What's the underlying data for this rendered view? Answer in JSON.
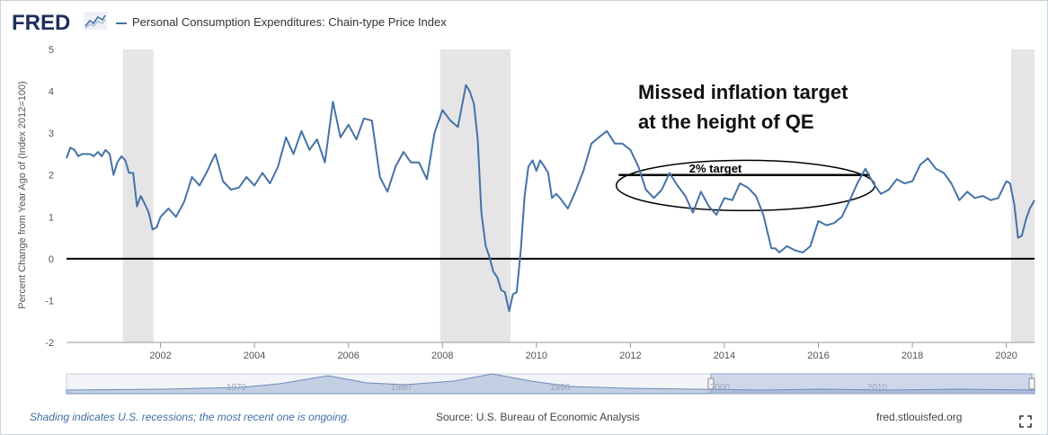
{
  "header": {
    "logo_text": "FRED",
    "logo_icon": "fred-chart-icon",
    "legend_label": "Personal Consumption Expenditures: Chain-type Price Index"
  },
  "footer": {
    "recession_note": "Shading indicates U.S. recessions; the most recent one is ongoing.",
    "source": "Source: U.S. Bureau of Economic Analysis",
    "site": "fred.stlouisfed.org"
  },
  "annotation": {
    "title_line1": "Missed inflation target",
    "title_line2": "at the height of QE",
    "target_label": "2% target"
  },
  "chart_data": {
    "type": "line",
    "title": "Personal Consumption Expenditures: Chain-type Price Index",
    "xlabel": "",
    "ylabel": "Percent Change from Year Ago of (Index 2012=100)",
    "xlim": [
      2000.0,
      2020.6
    ],
    "ylim": [
      -2,
      5
    ],
    "yticks": [
      -2,
      -1,
      0,
      1,
      2,
      3,
      4,
      5
    ],
    "xticks": [
      2002,
      2004,
      2006,
      2008,
      2010,
      2012,
      2014,
      2016,
      2018,
      2020
    ],
    "recessions": [
      [
        2001.2,
        2001.85
      ],
      [
        2007.95,
        2009.45
      ],
      [
        2020.1,
        2020.6
      ]
    ],
    "reference_line": 0,
    "target_line": {
      "y": 2.0,
      "x_start": 2011.75,
      "x_end": 2017.1
    },
    "ellipse": {
      "cx": 2014.45,
      "cy": 1.75,
      "rx": 2.75,
      "ry": 0.6
    },
    "navigator_labels": [
      "1970",
      "1980",
      "1990",
      "2000",
      "2010"
    ],
    "series": [
      {
        "name": "Personal Consumption Expenditures: Chain-type Price Index",
        "color": "#4572a7",
        "x": [
          2000.0,
          2000.08,
          2000.17,
          2000.25,
          2000.33,
          2000.42,
          2000.5,
          2000.58,
          2000.67,
          2000.75,
          2000.83,
          2000.92,
          2001.0,
          2001.08,
          2001.17,
          2001.25,
          2001.33,
          2001.42,
          2001.5,
          2001.58,
          2001.67,
          2001.75,
          2001.83,
          2001.92,
          2002.0,
          2002.17,
          2002.33,
          2002.5,
          2002.67,
          2002.83,
          2003.0,
          2003.08,
          2003.17,
          2003.33,
          2003.5,
          2003.67,
          2003.83,
          2004.0,
          2004.17,
          2004.33,
          2004.5,
          2004.67,
          2004.83,
          2005.0,
          2005.17,
          2005.33,
          2005.5,
          2005.67,
          2005.83,
          2006.0,
          2006.17,
          2006.33,
          2006.5,
          2006.67,
          2006.83,
          2007.0,
          2007.17,
          2007.33,
          2007.5,
          2007.67,
          2007.83,
          2008.0,
          2008.17,
          2008.33,
          2008.5,
          2008.58,
          2008.67,
          2008.75,
          2008.83,
          2008.92,
          2009.0,
          2009.08,
          2009.17,
          2009.25,
          2009.33,
          2009.42,
          2009.5,
          2009.58,
          2009.67,
          2009.75,
          2009.83,
          2009.92,
          2010.0,
          2010.08,
          2010.17,
          2010.25,
          2010.33,
          2010.42,
          2010.5,
          2010.67,
          2010.83,
          2011.0,
          2011.17,
          2011.33,
          2011.5,
          2011.67,
          2011.83,
          2012.0,
          2012.17,
          2012.33,
          2012.5,
          2012.67,
          2012.83,
          2013.0,
          2013.17,
          2013.33,
          2013.5,
          2013.67,
          2013.83,
          2014.0,
          2014.17,
          2014.33,
          2014.5,
          2014.67,
          2014.83,
          2015.0,
          2015.08,
          2015.17,
          2015.33,
          2015.5,
          2015.67,
          2015.83,
          2016.0,
          2016.17,
          2016.33,
          2016.5,
          2016.67,
          2016.83,
          2017.0,
          2017.17,
          2017.33,
          2017.5,
          2017.67,
          2017.83,
          2018.0,
          2018.17,
          2018.33,
          2018.5,
          2018.67,
          2018.83,
          2019.0,
          2019.17,
          2019.33,
          2019.5,
          2019.67,
          2019.83,
          2020.0,
          2020.08,
          2020.17,
          2020.25,
          2020.33,
          2020.42,
          2020.5,
          2020.6
        ],
        "values": [
          2.4,
          2.65,
          2.6,
          2.45,
          2.5,
          2.5,
          2.5,
          2.45,
          2.55,
          2.45,
          2.6,
          2.5,
          2.0,
          2.3,
          2.45,
          2.35,
          2.05,
          2.05,
          1.25,
          1.5,
          1.3,
          1.1,
          0.7,
          0.75,
          1.0,
          1.2,
          1.0,
          1.35,
          1.95,
          1.75,
          2.1,
          2.3,
          2.5,
          1.85,
          1.65,
          1.7,
          1.95,
          1.75,
          2.05,
          1.8,
          2.2,
          2.9,
          2.5,
          3.05,
          2.6,
          2.85,
          2.3,
          3.75,
          2.9,
          3.2,
          2.85,
          3.35,
          3.3,
          1.95,
          1.6,
          2.2,
          2.55,
          2.3,
          2.3,
          1.9,
          3.0,
          3.55,
          3.3,
          3.15,
          4.15,
          4.0,
          3.7,
          2.85,
          1.1,
          0.3,
          0.05,
          -0.3,
          -0.45,
          -0.75,
          -0.8,
          -1.25,
          -0.85,
          -0.8,
          0.25,
          1.5,
          2.2,
          2.35,
          2.1,
          2.35,
          2.2,
          2.05,
          1.45,
          1.55,
          1.45,
          1.2,
          1.6,
          2.1,
          2.75,
          2.9,
          3.05,
          2.75,
          2.75,
          2.6,
          2.2,
          1.65,
          1.45,
          1.65,
          2.05,
          1.75,
          1.5,
          1.1,
          1.6,
          1.25,
          1.05,
          1.45,
          1.4,
          1.8,
          1.7,
          1.5,
          1.05,
          0.25,
          0.25,
          0.15,
          0.3,
          0.2,
          0.15,
          0.3,
          0.9,
          0.8,
          0.85,
          1.0,
          1.4,
          1.8,
          2.15,
          1.8,
          1.55,
          1.65,
          1.9,
          1.8,
          1.85,
          2.25,
          2.4,
          2.15,
          2.05,
          1.8,
          1.4,
          1.6,
          1.45,
          1.5,
          1.4,
          1.45,
          1.85,
          1.8,
          1.3,
          0.5,
          0.55,
          0.95,
          1.2,
          1.4
        ]
      }
    ]
  }
}
